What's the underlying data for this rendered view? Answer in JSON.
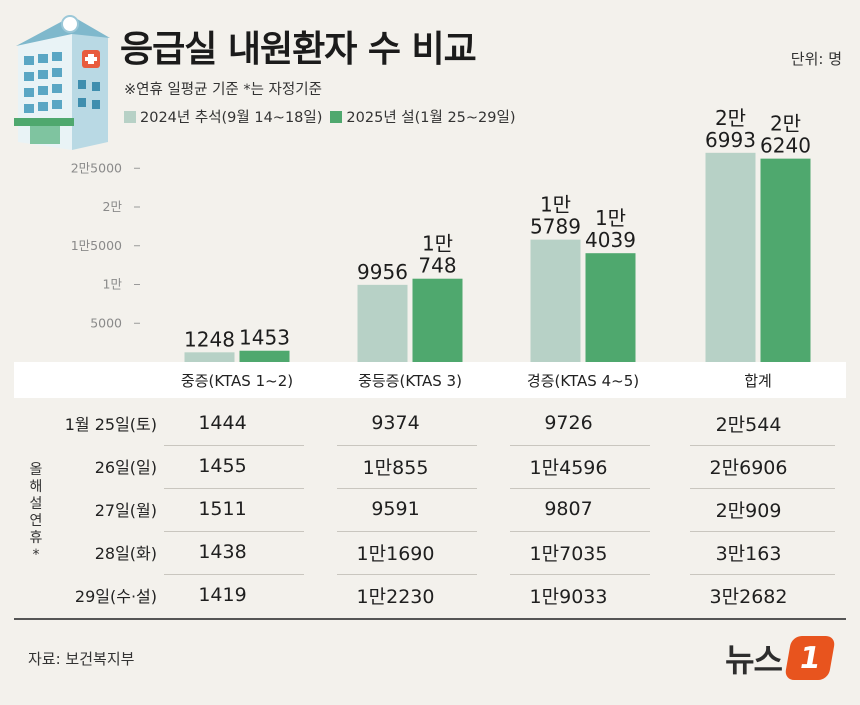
{
  "header": {
    "title": "응급실 내원환자 수 비교",
    "unit": "단위: 명",
    "note": "※연휴 일평균 기준  *는 자정기준"
  },
  "legend": [
    {
      "label": "2024년 추석(9월 14~18일)",
      "color": "#b7d1c6"
    },
    {
      "label": "2025년 설(1월 25~29일)",
      "color": "#4fa86e"
    }
  ],
  "chart_data": {
    "type": "bar",
    "categories": [
      "중증(KTAS 1~2)",
      "중등증(KTAS 3)",
      "경증(KTAS 4~5)",
      "합계"
    ],
    "series": [
      {
        "name": "2024년 추석(9월 14~18일)",
        "values": [
          1248,
          9956,
          15789,
          26993
        ],
        "labels": [
          [
            "1248"
          ],
          [
            "9956"
          ],
          [
            "1만",
            "5789"
          ],
          [
            "2만",
            "6993"
          ]
        ],
        "color": "#b7d1c6"
      },
      {
        "name": "2025년 설(1월 25~29일)",
        "values": [
          1453,
          10748,
          14039,
          26240
        ],
        "labels": [
          [
            "1453"
          ],
          [
            "1만",
            "748"
          ],
          [
            "1만",
            "4039"
          ],
          [
            "2만",
            "6240"
          ]
        ],
        "color": "#4fa86e"
      }
    ],
    "yticks": [
      {
        "value": 5000,
        "label": "5000"
      },
      {
        "value": 10000,
        "label": "1만"
      },
      {
        "value": 15000,
        "label": "1만5000"
      },
      {
        "value": 20000,
        "label": "2만"
      },
      {
        "value": 25000,
        "label": "2만5000"
      }
    ],
    "ylim": [
      0,
      29000
    ]
  },
  "table": {
    "vertical_label": "올해 설 연휴*",
    "rows": [
      {
        "date": "1월 25일(토)",
        "values": [
          "1444",
          "9374",
          "9726",
          "2만544"
        ]
      },
      {
        "date": "26일(일)",
        "values": [
          "1455",
          "1만855",
          "1만4596",
          "2만6906"
        ]
      },
      {
        "date": "27일(월)",
        "values": [
          "1511",
          "9591",
          "9807",
          "2만909"
        ]
      },
      {
        "date": "28일(화)",
        "values": [
          "1438",
          "1만1690",
          "1만7035",
          "3만163"
        ]
      },
      {
        "date": "29일(수·설)",
        "values": [
          "1419",
          "1만2230",
          "1만9033",
          "3만2682"
        ]
      }
    ]
  },
  "footer": {
    "source": "자료: 보건복지부",
    "logo_text": "뉴스",
    "logo_badge": "1"
  }
}
